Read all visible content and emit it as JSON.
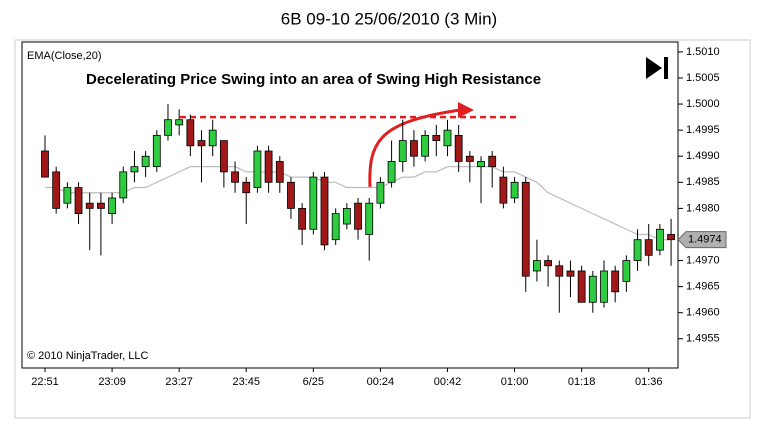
{
  "chart_data": {
    "type": "candlestick",
    "title": "6B 09-10  25/06/2010 (3 Min)",
    "indicator_label": "EMA(Close,20)",
    "annotation": "Decelerating Price Swing into an area of Swing High Resistance",
    "copyright": "© 2010 NinjaTrader, LLC",
    "categories": [
      "22:51",
      null,
      null,
      null,
      null,
      null,
      "23:09",
      null,
      null,
      null,
      null,
      null,
      "23:27",
      null,
      null,
      null,
      null,
      null,
      "23:45",
      null,
      null,
      null,
      null,
      null,
      "6/25",
      null,
      null,
      null,
      null,
      null,
      "00:24",
      null,
      null,
      null,
      null,
      null,
      "00:42",
      null,
      null,
      null,
      null,
      null,
      "01:00",
      null,
      null,
      null,
      null,
      null,
      "01:18",
      null,
      null,
      null,
      null,
      null,
      "01:36",
      null,
      null
    ],
    "open": [
      1.4991,
      1.4987,
      1.4981,
      1.4984,
      1.4981,
      1.4981,
      1.4979,
      1.4982,
      1.4987,
      1.4988,
      1.4988,
      1.4994,
      1.4996,
      1.4997,
      1.4993,
      1.4992,
      1.4993,
      1.4987,
      1.4985,
      1.4984,
      1.4991,
      1.4989,
      1.4985,
      1.498,
      1.4976,
      1.4986,
      1.4974,
      1.4977,
      1.4981,
      1.4975,
      1.4981,
      1.4985,
      1.4989,
      1.4993,
      1.499,
      1.4994,
      1.4992,
      1.4994,
      1.499,
      1.4988,
      1.499,
      1.4986,
      1.4982,
      1.4985,
      1.4968,
      1.497,
      1.4969,
      1.4968,
      1.4968,
      1.4962,
      1.4962,
      1.4968,
      1.4966,
      1.497,
      1.4974,
      1.4972,
      1.4975
    ],
    "high": [
      1.4994,
      1.4988,
      1.4985,
      1.4985,
      1.4983,
      1.4983,
      1.4983,
      1.4988,
      1.4991,
      1.4991,
      1.4995,
      1.5,
      1.4999,
      1.4998,
      1.4995,
      1.4997,
      1.4993,
      1.4989,
      1.4986,
      1.4992,
      1.4992,
      1.499,
      1.4986,
      1.4981,
      1.4987,
      1.4987,
      1.498,
      1.4981,
      1.4982,
      1.4982,
      1.4986,
      1.4993,
      1.4997,
      1.4995,
      1.4995,
      1.4996,
      1.4997,
      1.4996,
      1.4991,
      1.499,
      1.4991,
      1.4988,
      1.4986,
      1.4986,
      1.4974,
      1.4971,
      1.497,
      1.497,
      1.4969,
      1.4968,
      1.497,
      1.4969,
      1.4971,
      1.4976,
      1.4977,
      1.4977,
      1.4978
    ],
    "low": [
      1.4986,
      1.4979,
      1.498,
      1.4977,
      1.4972,
      1.4971,
      1.4977,
      1.4981,
      1.4985,
      1.4986,
      1.4987,
      1.4993,
      1.4994,
      1.499,
      1.4985,
      1.499,
      1.4984,
      1.4983,
      1.4977,
      1.4983,
      1.4983,
      1.4983,
      1.4978,
      1.4973,
      1.4975,
      1.4972,
      1.4973,
      1.4976,
      1.4974,
      1.497,
      1.498,
      1.4984,
      1.4987,
      1.4988,
      1.4989,
      1.499,
      1.499,
      1.4987,
      1.4985,
      1.4981,
      1.4984,
      1.498,
      1.4981,
      1.4964,
      1.4966,
      1.4965,
      1.496,
      1.4963,
      1.4962,
      1.496,
      1.4961,
      1.4962,
      1.4964,
      1.4968,
      1.4969,
      1.4971,
      1.4969
    ],
    "close": [
      1.4986,
      1.498,
      1.4984,
      1.4979,
      1.498,
      1.498,
      1.4982,
      1.4987,
      1.4988,
      1.499,
      1.4994,
      1.4997,
      1.4997,
      1.4992,
      1.4992,
      1.4995,
      1.4987,
      1.4985,
      1.4983,
      1.4991,
      1.4985,
      1.4985,
      1.498,
      1.4976,
      1.4986,
      1.4973,
      1.4979,
      1.498,
      1.4976,
      1.4981,
      1.4985,
      1.4989,
      1.4993,
      1.499,
      1.4994,
      1.4993,
      1.4995,
      1.4989,
      1.4989,
      1.4989,
      1.4988,
      1.4981,
      1.4985,
      1.4967,
      1.497,
      1.4969,
      1.4967,
      1.4967,
      1.4962,
      1.4967,
      1.4968,
      1.4964,
      1.497,
      1.4974,
      1.4971,
      1.4976,
      1.4974
    ],
    "up_color": "#2ecc40",
    "down_color": "#a01818",
    "ema": {
      "name": "EMA(Close,20)",
      "color": "#bdbdbd",
      "values": [
        1.4984,
        1.4984,
        1.4983,
        1.4983,
        1.4983,
        1.4983,
        1.4983,
        1.4983,
        1.4984,
        1.4984,
        1.4985,
        1.4986,
        1.4987,
        1.4988,
        1.4988,
        1.4988,
        1.4988,
        1.4988,
        1.4987,
        1.4987,
        1.4987,
        1.4987,
        1.4986,
        1.4986,
        1.4986,
        1.4985,
        1.4985,
        1.4984,
        1.4984,
        1.4984,
        1.4984,
        1.4985,
        1.4986,
        1.4986,
        1.4987,
        1.4987,
        1.4988,
        1.4988,
        1.4988,
        1.4988,
        1.4988,
        1.4987,
        1.4987,
        1.4986,
        1.4985,
        1.4983,
        1.4982,
        1.4981,
        1.498,
        1.4979,
        1.4978,
        1.4977,
        1.4976,
        1.4975,
        1.4975,
        1.4974,
        1.4974
      ]
    },
    "resistance_level": 1.49975,
    "resistance_color": "#e02020",
    "last_price": {
      "value": 1.4974,
      "label": "1.4974"
    },
    "ylim": [
      1.49494,
      1.50119
    ],
    "yticks": [
      1.4955,
      {
        "value": 1.496,
        "label": "1.4960"
      },
      1.4965,
      {
        "value": 1.497,
        "label": "1.4970"
      },
      {
        "value": 1.498,
        "label": "1.4980"
      },
      1.4985,
      {
        "value": 1.499,
        "label": "1.4990"
      },
      1.4995,
      {
        "value": 1.5,
        "label": "1.5000"
      },
      1.5005,
      {
        "value": 1.501,
        "label": "1.5010"
      }
    ]
  }
}
